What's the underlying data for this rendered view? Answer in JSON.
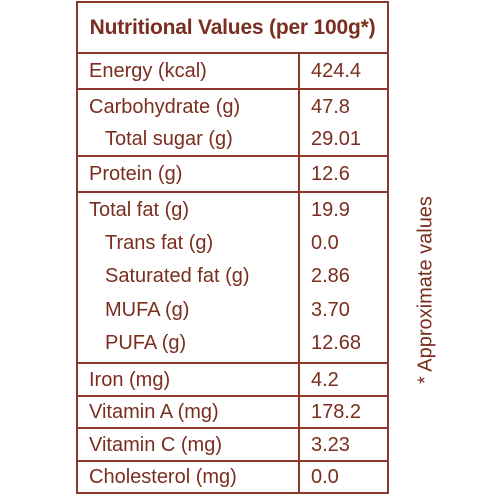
{
  "title": "Nutritional Values (per 100g*)",
  "note": "* Approximate values",
  "rows": [
    {
      "label": "Energy (kcal)",
      "value": "424.4"
    },
    {
      "label": "Carbohydrate (g)",
      "value": "47.8"
    },
    {
      "label": "Total sugar (g)",
      "value": "29.01"
    },
    {
      "label": "Protein (g)",
      "value": "12.6"
    },
    {
      "label": "Total fat (g)",
      "value": "19.9"
    },
    {
      "label": "Trans fat (g)",
      "value": "0.0"
    },
    {
      "label": "Saturated fat (g)",
      "value": "2.86"
    },
    {
      "label": "MUFA (g)",
      "value": "3.70"
    },
    {
      "label": "PUFA (g)",
      "value": "12.68"
    },
    {
      "label": "Iron (mg)",
      "value": "4.2"
    },
    {
      "label": "Vitamin A (mg)",
      "value": "178.2"
    },
    {
      "label": "Vitamin C (mg)",
      "value": "3.23"
    },
    {
      "label": "Cholesterol (mg)",
      "value": "0.0"
    }
  ]
}
